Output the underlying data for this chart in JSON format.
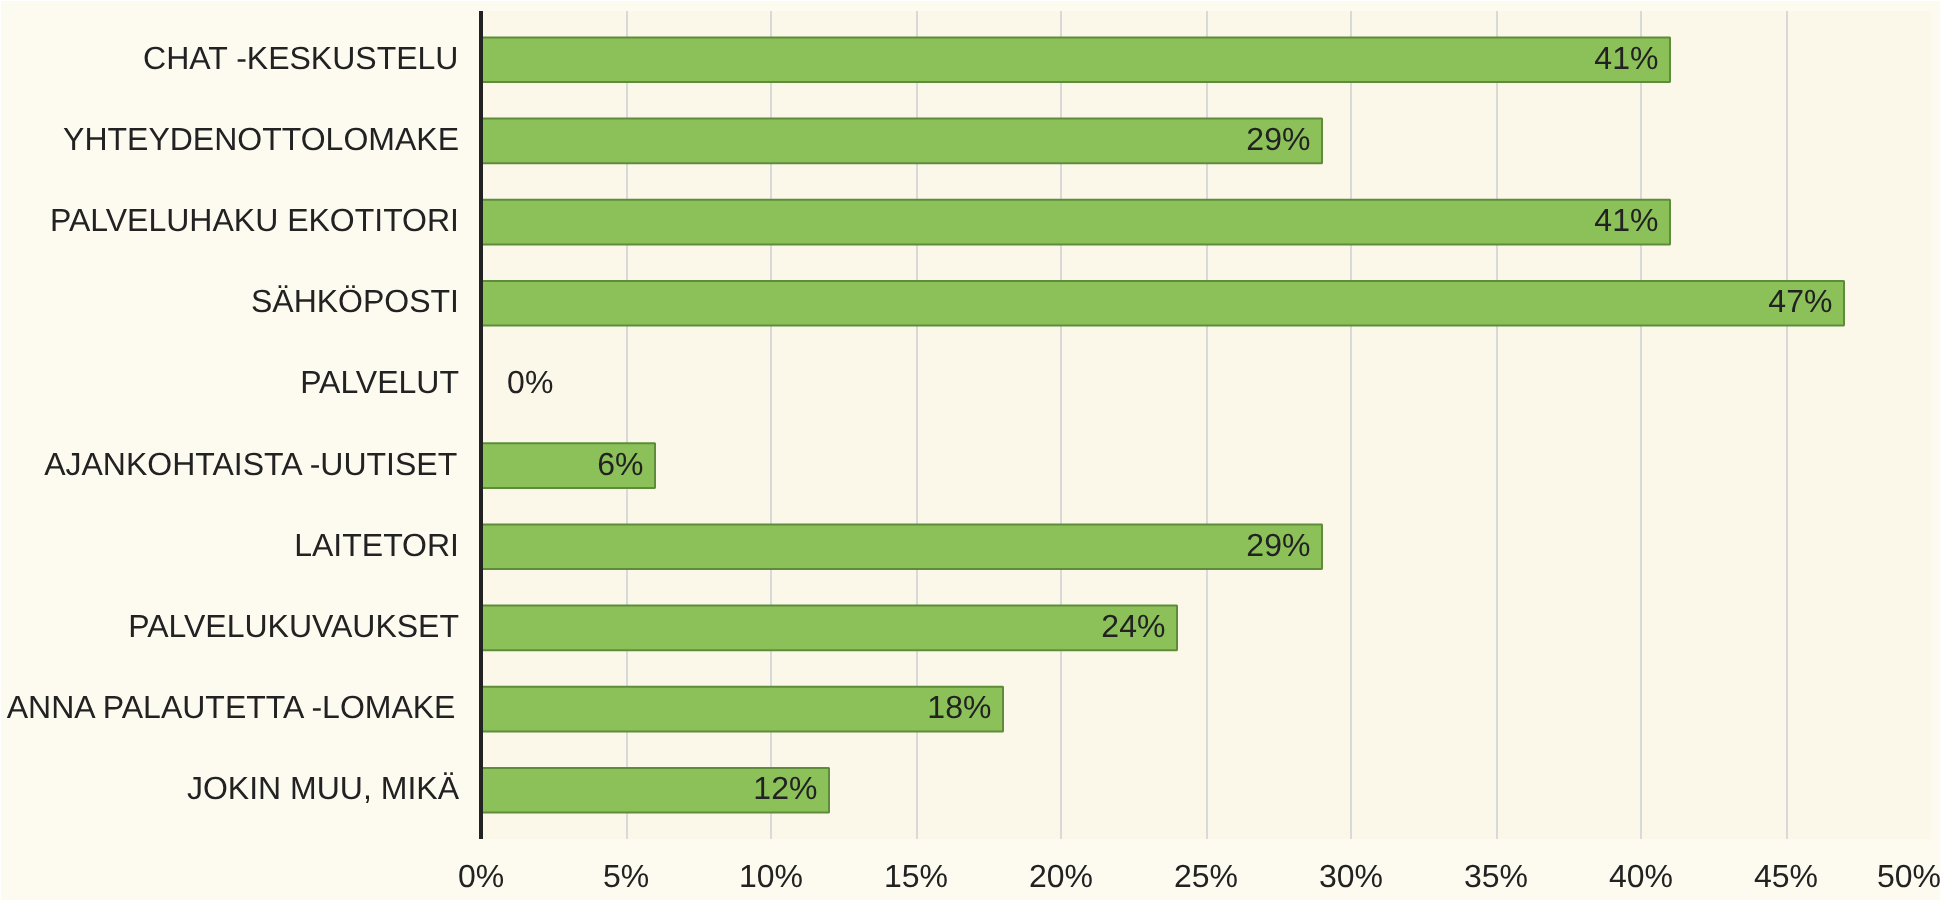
{
  "chart_data": {
    "type": "bar",
    "orientation": "horizontal",
    "categories": [
      "CHAT -KESKUSTELU",
      "YHTEYDENOTTOLOMAKE",
      "PALVELUHAKU EKOTITORI",
      "SÄHKÖPOSTI",
      "PALVELUT",
      "AJANKOHTAISTA -UUTISET",
      "LAITETORI",
      "PALVELUKUVAUKSET",
      "ANNA PALAUTETTA -LOMAKE",
      "JOKIN MUU, MIKÄ"
    ],
    "values": [
      41,
      29,
      41,
      47,
      0,
      6,
      29,
      24,
      18,
      12
    ],
    "value_labels": [
      "41%",
      "29%",
      "41%",
      "47%",
      "0%",
      "6%",
      "29%",
      "24%",
      "18%",
      "12%"
    ],
    "color": "#8cc15a",
    "xlim": [
      0,
      50
    ],
    "xticks": [
      {
        "value": 0,
        "label": "0%"
      },
      {
        "value": 5,
        "label": "5%"
      },
      {
        "value": 10,
        "label": "10%"
      },
      {
        "value": 15,
        "label": "15%"
      },
      {
        "value": 20,
        "label": "20%"
      },
      {
        "value": 25,
        "label": "25%"
      },
      {
        "value": 30,
        "label": "30%"
      },
      {
        "value": 35,
        "label": "35%"
      },
      {
        "value": 40,
        "label": "40%"
      },
      {
        "value": 45,
        "label": "45%"
      },
      {
        "value": 50,
        "label": "50%"
      }
    ],
    "grid": "x"
  }
}
